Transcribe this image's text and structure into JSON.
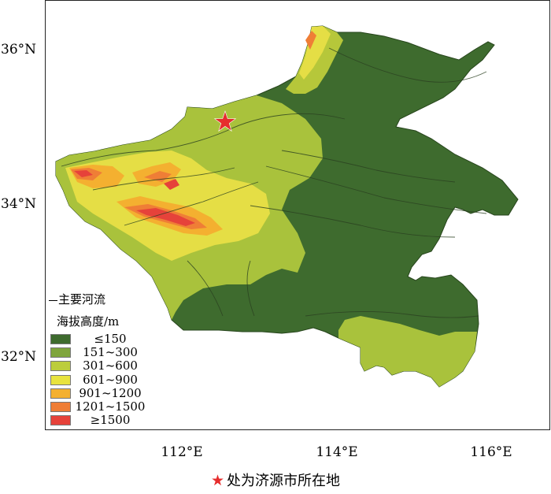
{
  "axes": {
    "lat_labels": [
      "36°N",
      "34°N",
      "32°N"
    ],
    "lon_labels": [
      "112°E",
      "114°E",
      "116°E"
    ]
  },
  "legend": {
    "river_label": "主要河流",
    "elevation_title": "海拔高度/m",
    "classes": [
      {
        "label": "≤150",
        "color": "#3e6b2e"
      },
      {
        "label": "151~300",
        "color": "#7fa53c"
      },
      {
        "label": "301~600",
        "color": "#bccd3c"
      },
      {
        "label": "601~900",
        "color": "#e8e33e"
      },
      {
        "label": "901~1200",
        "color": "#f4b030"
      },
      {
        "label": "1201~1500",
        "color": "#ef7e36"
      },
      {
        "label": "≥1500",
        "color": "#e6423a"
      }
    ]
  },
  "marker": {
    "label": "济源市",
    "color": "#e62d2d",
    "icon": "star-icon"
  },
  "caption": {
    "star": "★",
    "text": "处为济源市所在地"
  }
}
